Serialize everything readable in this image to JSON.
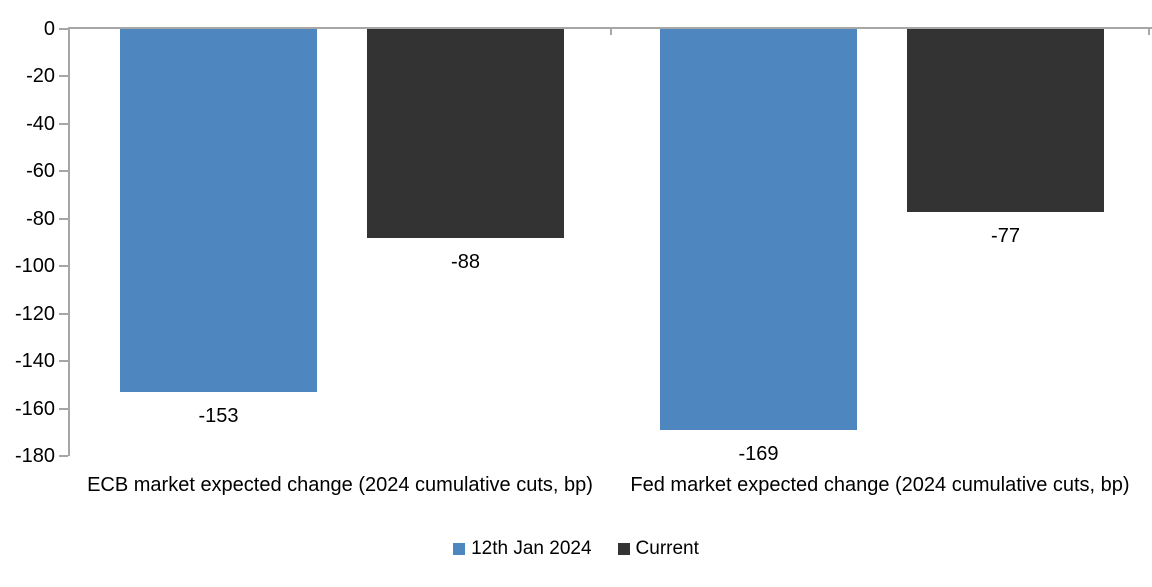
{
  "chart_data": {
    "type": "bar",
    "title": "",
    "xlabel": "",
    "ylabel": "",
    "categories": [
      "ECB market expected change (2024 cumulative cuts, bp)",
      "Fed market expected change (2024 cumulative cuts, bp)"
    ],
    "series": [
      {
        "name": "12th Jan 2024",
        "color": "#4E87C0",
        "values": [
          -153,
          -169
        ]
      },
      {
        "name": "Current",
        "color": "#333333",
        "values": [
          -88,
          -77
        ]
      }
    ],
    "data_labels": [
      {
        "category": "ECB",
        "series": "12th Jan 2024",
        "text": "-153"
      },
      {
        "category": "ECB",
        "series": "Current",
        "text": "-88"
      },
      {
        "category": "Fed",
        "series": "12th Jan 2024",
        "text": "-169"
      },
      {
        "category": "Fed",
        "series": "Current",
        "text": "-77"
      }
    ],
    "ylim": [
      -180,
      0
    ],
    "yticks": [
      0,
      -20,
      -40,
      -60,
      -80,
      -100,
      -120,
      -140,
      -160,
      -180
    ],
    "grid": false,
    "legend_position": "bottom",
    "axis_color": "#A6A6A6",
    "text_color": "#000000",
    "background_color": "#FFFFFF"
  }
}
